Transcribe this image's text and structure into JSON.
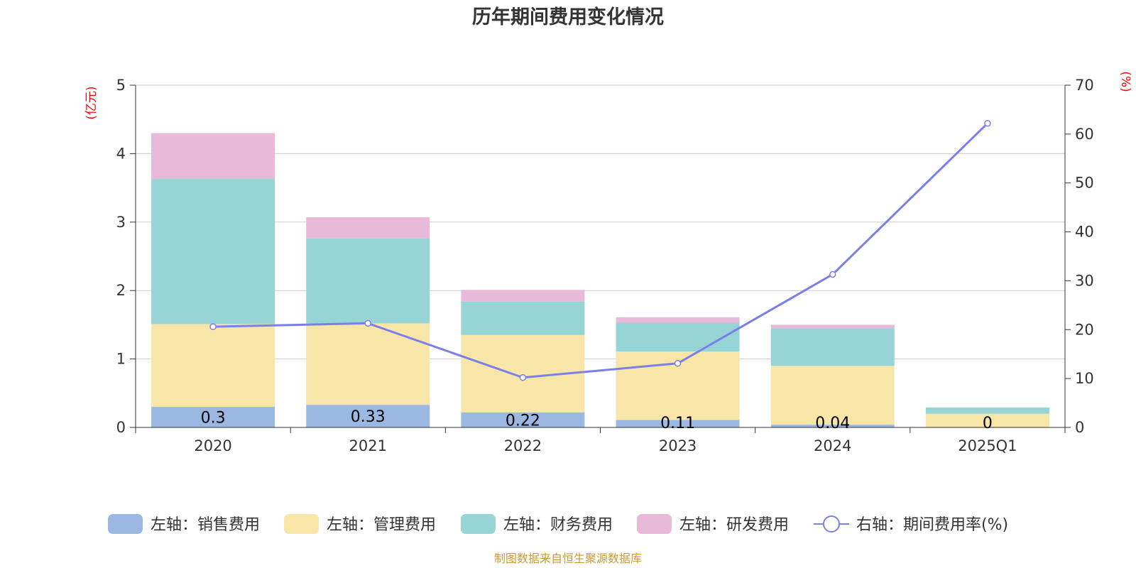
{
  "chart_data": {
    "type": "bar",
    "stacked": true,
    "title": "历年期间费用变化情况",
    "categories": [
      "2020",
      "2021",
      "2022",
      "2023",
      "2024",
      "2025Q1"
    ],
    "y_left": {
      "unit": "(亿元)",
      "ylim": [
        0,
        5
      ],
      "ticks": [
        "0",
        "1",
        "2",
        "3",
        "4",
        "5"
      ]
    },
    "y_right": {
      "unit": "(%)",
      "ylim": [
        0,
        70
      ],
      "ticks": [
        "0",
        "10",
        "20",
        "30",
        "40",
        "50",
        "60",
        "70"
      ]
    },
    "series": [
      {
        "name": "左轴：销售费用",
        "axis": "left",
        "color": "#9bb8e2",
        "values": [
          0.3,
          0.33,
          0.22,
          0.11,
          0.04,
          0
        ],
        "labels": [
          "0.3",
          "0.33",
          "0.22",
          "0.11",
          "0.04",
          "0"
        ]
      },
      {
        "name": "左轴：管理费用",
        "axis": "left",
        "color": "#f7e6a8",
        "values": [
          1.21,
          1.19,
          1.13,
          1.0,
          0.86,
          0.2
        ]
      },
      {
        "name": "左轴：财务费用",
        "axis": "left",
        "color": "#97d4d5",
        "values": [
          2.12,
          1.24,
          0.49,
          0.42,
          0.55,
          0.09
        ]
      },
      {
        "name": "左轴：研发费用",
        "axis": "left",
        "color": "#e8b9d9",
        "values": [
          0.67,
          0.31,
          0.17,
          0.08,
          0.05,
          0
        ]
      },
      {
        "name": "右轴：期间费用率(%)",
        "axis": "right",
        "type": "line",
        "color": "#7b7fe8",
        "values": [
          20.6,
          21.3,
          10.2,
          13.1,
          31.3,
          62.2
        ]
      }
    ],
    "grid": true,
    "legend_position": "bottom",
    "source": "制图数据来自恒生聚源数据库"
  }
}
